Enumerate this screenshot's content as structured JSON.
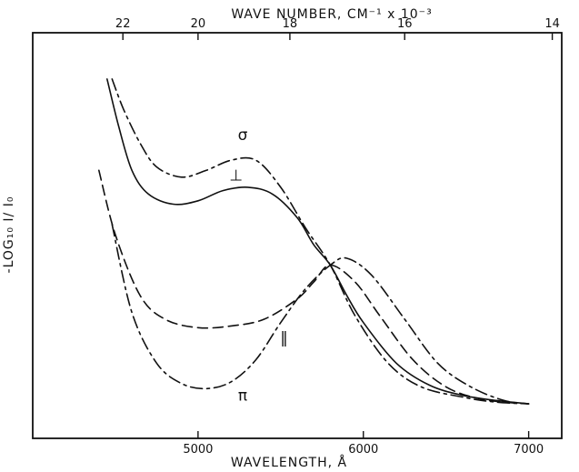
{
  "chart_data": {
    "type": "line",
    "title": "",
    "xlabel": "WAVELENGTH, Å",
    "x2label": "WAVE NUMBER, CM⁻¹ x 10⁻³",
    "ylabel": "-LOG₁₀ I/ I₀",
    "xlim": [
      4000,
      7200
    ],
    "ylim": [
      0,
      1
    ],
    "x_ticks": [
      5000,
      6000,
      7000
    ],
    "x_tick_labels": [
      "5000",
      "6000",
      "7000"
    ],
    "x2_ticks": [
      22,
      20,
      18,
      16,
      14
    ],
    "x2_tick_labels": [
      "22",
      "20",
      "18",
      "16",
      "14"
    ],
    "grid": false,
    "legend": "none",
    "series": [
      {
        "name": "⊥",
        "style": "solid",
        "x": [
          4450,
          4520,
          4600,
          4700,
          4850,
          5000,
          5150,
          5300,
          5450,
          5600,
          5700,
          5800,
          5900,
          6000,
          6200,
          6400,
          6600,
          6800,
          7000
        ],
        "y": [
          0.96,
          0.82,
          0.69,
          0.62,
          0.59,
          0.6,
          0.63,
          0.64,
          0.62,
          0.55,
          0.47,
          0.41,
          0.32,
          0.24,
          0.12,
          0.055,
          0.025,
          0.01,
          0.0
        ]
      },
      {
        "name": "σ",
        "style": "dashdot",
        "x": [
          4480,
          4550,
          4650,
          4750,
          4900,
          5050,
          5200,
          5350,
          5500,
          5650,
          5800,
          5950,
          6150,
          6350,
          6600,
          6800,
          7000
        ],
        "y": [
          0.96,
          0.87,
          0.77,
          0.7,
          0.67,
          0.69,
          0.72,
          0.72,
          0.64,
          0.52,
          0.41,
          0.26,
          0.12,
          0.05,
          0.02,
          0.005,
          0.0
        ]
      },
      {
        "name": "‖",
        "style": "dashed",
        "x": [
          4400,
          4500,
          4650,
          4800,
          5000,
          5200,
          5400,
          5600,
          5700,
          5800,
          5950,
          6100,
          6300,
          6500,
          6700,
          6900,
          7000
        ],
        "y": [
          0.69,
          0.5,
          0.32,
          0.25,
          0.225,
          0.23,
          0.25,
          0.31,
          0.36,
          0.41,
          0.36,
          0.26,
          0.13,
          0.05,
          0.015,
          0.003,
          0.0
        ]
      },
      {
        "name": "π",
        "style": "dashdot",
        "x": [
          4480,
          4600,
          4750,
          4900,
          5050,
          5200,
          5350,
          5500,
          5650,
          5800,
          5900,
          6050,
          6250,
          6450,
          6650,
          6850,
          7000
        ],
        "y": [
          0.53,
          0.27,
          0.12,
          0.06,
          0.045,
          0.065,
          0.13,
          0.24,
          0.34,
          0.41,
          0.43,
          0.38,
          0.25,
          0.12,
          0.05,
          0.01,
          0.0
        ]
      }
    ],
    "annotations": [
      {
        "text": "σ",
        "x": 5270,
        "y": 0.78,
        "series": "σ"
      },
      {
        "text": "⊥",
        "x": 5230,
        "y": 0.66,
        "series": "⊥"
      },
      {
        "text": "‖",
        "x": 5520,
        "y": 0.18,
        "series": "‖"
      },
      {
        "text": "π",
        "x": 5270,
        "y": 0.01,
        "series": "π"
      }
    ]
  }
}
